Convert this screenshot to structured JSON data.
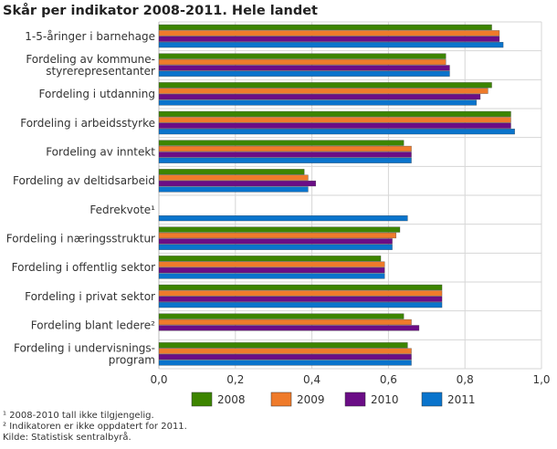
{
  "chart_data": {
    "type": "bar",
    "orientation": "horizontal",
    "title": "Skår per indikator 2008-2011. Hele landet",
    "categories": [
      [
        "1-5-åringer i barnehage"
      ],
      [
        "Fordeling av kommune-",
        "styrerepresentanter"
      ],
      [
        "Fordeling i utdanning"
      ],
      [
        "Fordeling i arbeidsstyrke"
      ],
      [
        "Fordeling av inntekt"
      ],
      [
        "Fordeling av deltidsarbeid"
      ],
      [
        "Fedrekvote¹"
      ],
      [
        "Fordeling i næringsstruktur"
      ],
      [
        "Fordeling i offentlig sektor"
      ],
      [
        "Fordeling i privat sektor"
      ],
      [
        "Fordeling blant ledere²"
      ],
      [
        "Fordeling i undervisnings-",
        "program"
      ]
    ],
    "series": [
      {
        "name": "2008",
        "color": "#3d8500",
        "values": [
          0.87,
          0.75,
          0.87,
          0.92,
          0.64,
          0.38,
          null,
          0.63,
          0.58,
          0.74,
          0.64,
          0.65
        ]
      },
      {
        "name": "2009",
        "color": "#ef7b2b",
        "values": [
          0.89,
          0.75,
          0.86,
          0.92,
          0.66,
          0.39,
          null,
          0.62,
          0.59,
          0.74,
          0.66,
          0.66
        ]
      },
      {
        "name": "2010",
        "color": "#6b0d86",
        "values": [
          0.89,
          0.76,
          0.84,
          0.92,
          0.66,
          0.41,
          null,
          0.61,
          0.59,
          0.74,
          0.68,
          0.66
        ]
      },
      {
        "name": "2011",
        "color": "#0a74cc",
        "values": [
          0.9,
          0.76,
          0.83,
          0.93,
          0.66,
          0.39,
          0.65,
          0.61,
          0.59,
          0.74,
          null,
          0.66
        ]
      }
    ],
    "xlim": [
      0,
      1.0
    ],
    "xticks": [
      "0,0",
      "0,2",
      "0,4",
      "0,6",
      "0,8",
      "1,0"
    ],
    "grid": true,
    "legend": "bottom"
  },
  "footnotes": [
    "¹ 2008-2010 tall ikke tilgjengelig.",
    "² Indikatoren er ikke oppdatert for 2011.",
    " Kilde: Statistisk sentralbyrå."
  ]
}
